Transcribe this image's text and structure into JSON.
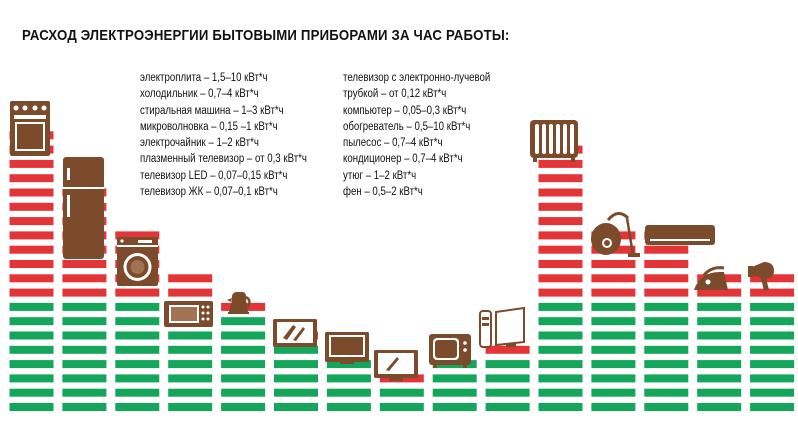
{
  "title": "РАСХОД ЭЛЕКТРОЭНЕРГИИ  БЫТОВЫМИ ПРИБОРАМИ ЗА ЧАС РАБОТЫ:",
  "legend_left": [
    "электроплита – 1,5–10 кВт*ч",
    "холодильник – 0,7–4 кВт*ч",
    "стиральная машина – 1–3 кВт*ч",
    "микроволновка – 0,15 –1 кВт*ч",
    "электрочайник – 1–2 кВт*ч",
    "плазменный телевизор – от 0,3 кВт*ч",
    "телевизор LED – 0,07–0,15 кВт*ч",
    "телевизор ЖК – 0,07–0,1 кВт*ч"
  ],
  "legend_right": [
    "телевизор с электронно-лучевой",
    "трубкой – от 0,12 кВт*ч",
    "компьютер – 0,05–0,3 кВт*ч",
    "обогреватель – 0,5–10 кВт*ч",
    "пылесос – 0,7–4 кВт*ч",
    "кондиционер – 0,7–4 кВт*ч",
    "утюг – 1–2 кВт*ч",
    "фен – 0,5–2 кВт*ч"
  ],
  "colors": {
    "red": "#e33437",
    "green": "#14a65a",
    "icon": "#7b4b2c"
  },
  "appliances": [
    {
      "icon": "stove-icon",
      "red": 12,
      "green": 8
    },
    {
      "icon": "fridge-icon",
      "red": 8,
      "green": 8
    },
    {
      "icon": "washing-machine-icon",
      "red": 5,
      "green": 8
    },
    {
      "icon": "microwave-icon",
      "red": 2,
      "green": 8
    },
    {
      "icon": "kettle-icon",
      "red": 1,
      "green": 7
    },
    {
      "icon": "plasma-tv-icon",
      "red": 1,
      "green": 5
    },
    {
      "icon": "led-tv-icon",
      "red": 0,
      "green": 4
    },
    {
      "icon": "lcd-tv-icon",
      "red": 1,
      "green": 2
    },
    {
      "icon": "crt-tv-icon",
      "red": 0,
      "green": 4
    },
    {
      "icon": "computer-icon",
      "red": 1,
      "green": 4
    },
    {
      "icon": "heater-icon",
      "red": 11,
      "green": 8
    },
    {
      "icon": "vacuum-icon",
      "red": 5,
      "green": 8
    },
    {
      "icon": "air-conditioner-icon",
      "red": 5,
      "green": 8
    },
    {
      "icon": "iron-icon",
      "red": 2,
      "green": 8
    },
    {
      "icon": "hair-dryer-icon",
      "red": 2,
      "green": 8
    }
  ]
}
